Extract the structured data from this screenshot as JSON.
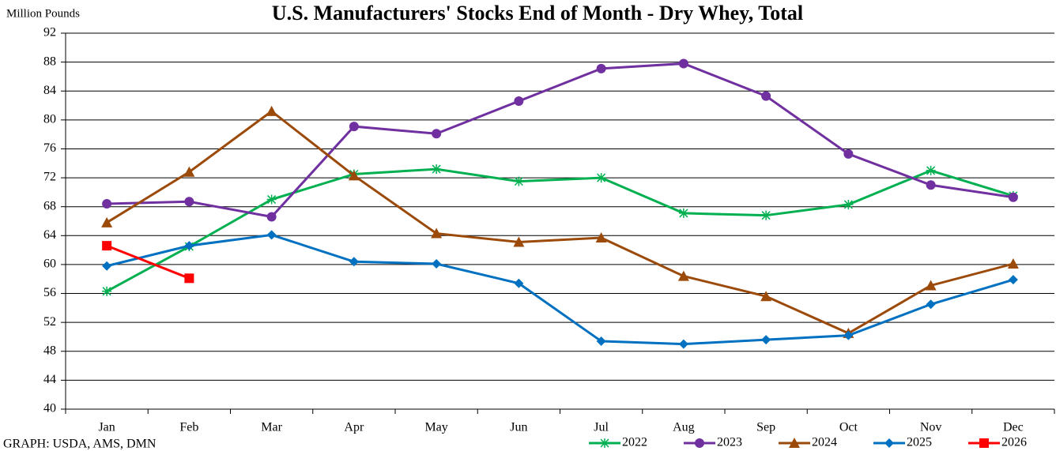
{
  "chart_data": {
    "type": "line",
    "title": "U.S. Manufacturers' Stocks End of Month - Dry Whey, Total",
    "y_label": "Million Pounds",
    "source": "GRAPH: USDA, AMS, DMN",
    "categories": [
      "Jan",
      "Feb",
      "Mar",
      "Apr",
      "May",
      "Jun",
      "Jul",
      "Aug",
      "Sep",
      "Oct",
      "Nov",
      "Dec"
    ],
    "series": [
      {
        "name": "2022",
        "color": "#00b050",
        "marker": "star",
        "values": [
          56.3,
          62.5,
          69.0,
          72.5,
          73.2,
          71.5,
          72.0,
          67.1,
          66.8,
          68.3,
          73.0,
          69.5
        ]
      },
      {
        "name": "2023",
        "color": "#7030a0",
        "marker": "circle",
        "values": [
          68.4,
          68.7,
          66.6,
          79.1,
          78.1,
          82.6,
          87.1,
          87.8,
          83.3,
          75.3,
          71.0,
          69.3
        ]
      },
      {
        "name": "2024",
        "color": "#9c4a0a",
        "marker": "triangle",
        "values": [
          65.8,
          72.8,
          81.2,
          72.3,
          64.3,
          63.1,
          63.7,
          58.4,
          55.6,
          50.5,
          57.1,
          60.1
        ]
      },
      {
        "name": "2025",
        "color": "#0070c0",
        "marker": "diamond",
        "values": [
          59.8,
          62.6,
          64.1,
          60.4,
          60.1,
          57.4,
          49.4,
          49.0,
          49.6,
          50.2,
          54.5,
          57.9
        ]
      },
      {
        "name": "2026",
        "color": "#ff0000",
        "marker": "square",
        "values": [
          62.6,
          58.1,
          null,
          null,
          null,
          null,
          null,
          null,
          null,
          null,
          null,
          null
        ]
      }
    ],
    "ylim": [
      40,
      92
    ],
    "yticks": [
      40,
      44,
      48,
      52,
      56,
      60,
      64,
      68,
      72,
      76,
      80,
      84,
      88,
      92
    ],
    "grid": true,
    "legend": "bottom-right"
  }
}
